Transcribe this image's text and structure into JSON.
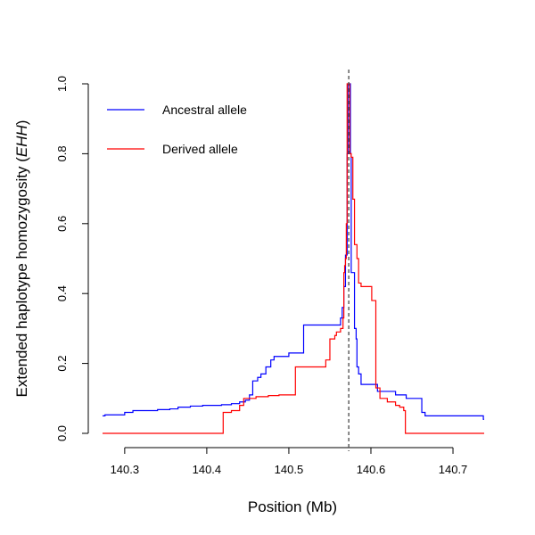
{
  "chart_data": {
    "type": "line",
    "title": "",
    "xlabel": "Position (Mb)",
    "ylabel_prefix": "Extended haplotype homozygosity (",
    "ylabel_italic": "EHH",
    "ylabel_suffix": ")",
    "xlim": [
      140.273,
      140.738
    ],
    "ylim": [
      0,
      1
    ],
    "x_ticks": [
      140.3,
      140.4,
      140.5,
      140.6,
      140.7
    ],
    "x_tick_labels": [
      "140.3",
      "140.4",
      "140.5",
      "140.6",
      "140.7"
    ],
    "y_ticks": [
      0,
      0.2,
      0.4,
      0.6,
      0.8,
      1.0
    ],
    "y_tick_labels": [
      "0.0",
      "0.2",
      "0.4",
      "0.6",
      "0.8",
      "1.0"
    ],
    "core_position": 140.573,
    "grid": false,
    "legend_position": "top-left",
    "colors": {
      "ancestral": "#0000ff",
      "derived": "#ff0000",
      "core_line": "#555555",
      "axis": "#000000"
    },
    "series": [
      {
        "name": "Ancestral allele",
        "color": "#0000ff",
        "step": true,
        "points": [
          [
            140.273,
            0.05
          ],
          [
            140.276,
            0.053
          ],
          [
            140.3,
            0.06
          ],
          [
            140.31,
            0.065
          ],
          [
            140.34,
            0.068
          ],
          [
            140.355,
            0.07
          ],
          [
            140.365,
            0.075
          ],
          [
            140.38,
            0.078
          ],
          [
            140.395,
            0.08
          ],
          [
            140.418,
            0.082
          ],
          [
            140.43,
            0.085
          ],
          [
            140.44,
            0.09
          ],
          [
            140.447,
            0.095
          ],
          [
            140.452,
            0.11
          ],
          [
            140.456,
            0.15
          ],
          [
            140.462,
            0.16
          ],
          [
            140.466,
            0.17
          ],
          [
            140.472,
            0.19
          ],
          [
            140.478,
            0.21
          ],
          [
            140.482,
            0.22
          ],
          [
            140.495,
            0.22
          ],
          [
            140.5,
            0.23
          ],
          [
            140.518,
            0.31
          ],
          [
            140.563,
            0.33
          ],
          [
            140.565,
            0.36
          ],
          [
            140.567,
            0.42
          ],
          [
            140.569,
            0.51
          ],
          [
            140.571,
            0.8
          ],
          [
            140.572,
            1.0
          ],
          [
            140.575,
            0.8
          ],
          [
            140.576,
            0.46
          ],
          [
            140.579,
            0.46
          ],
          [
            140.58,
            0.3
          ],
          [
            140.582,
            0.27
          ],
          [
            140.583,
            0.19
          ],
          [
            140.585,
            0.17
          ],
          [
            140.588,
            0.14
          ],
          [
            140.6,
            0.14
          ],
          [
            140.608,
            0.12
          ],
          [
            140.63,
            0.11
          ],
          [
            140.643,
            0.1
          ],
          [
            140.662,
            0.06
          ],
          [
            140.666,
            0.05
          ],
          [
            140.735,
            0.05
          ],
          [
            140.737,
            0.04
          ],
          [
            140.738,
            0.04
          ]
        ]
      },
      {
        "name": "Derived allele",
        "color": "#ff0000",
        "step": true,
        "points": [
          [
            140.273,
            0.0
          ],
          [
            140.42,
            0.06
          ],
          [
            140.43,
            0.065
          ],
          [
            140.44,
            0.08
          ],
          [
            140.445,
            0.1
          ],
          [
            140.46,
            0.105
          ],
          [
            140.475,
            0.108
          ],
          [
            140.488,
            0.11
          ],
          [
            140.508,
            0.19
          ],
          [
            140.545,
            0.21
          ],
          [
            140.55,
            0.27
          ],
          [
            140.556,
            0.28
          ],
          [
            140.558,
            0.29
          ],
          [
            140.563,
            0.3
          ],
          [
            140.566,
            0.33
          ],
          [
            140.567,
            0.46
          ],
          [
            140.568,
            0.48
          ],
          [
            140.569,
            0.5
          ],
          [
            140.57,
            0.6
          ],
          [
            140.571,
            1.0
          ],
          [
            140.574,
            0.8
          ],
          [
            140.576,
            0.79
          ],
          [
            140.578,
            0.67
          ],
          [
            140.58,
            0.54
          ],
          [
            140.583,
            0.5
          ],
          [
            140.585,
            0.43
          ],
          [
            140.588,
            0.42
          ],
          [
            140.601,
            0.38
          ],
          [
            140.606,
            0.13
          ],
          [
            140.611,
            0.1
          ],
          [
            140.62,
            0.09
          ],
          [
            140.63,
            0.08
          ],
          [
            140.635,
            0.075
          ],
          [
            140.64,
            0.065
          ],
          [
            140.642,
            0.0
          ],
          [
            140.738,
            0.0
          ]
        ]
      }
    ]
  }
}
